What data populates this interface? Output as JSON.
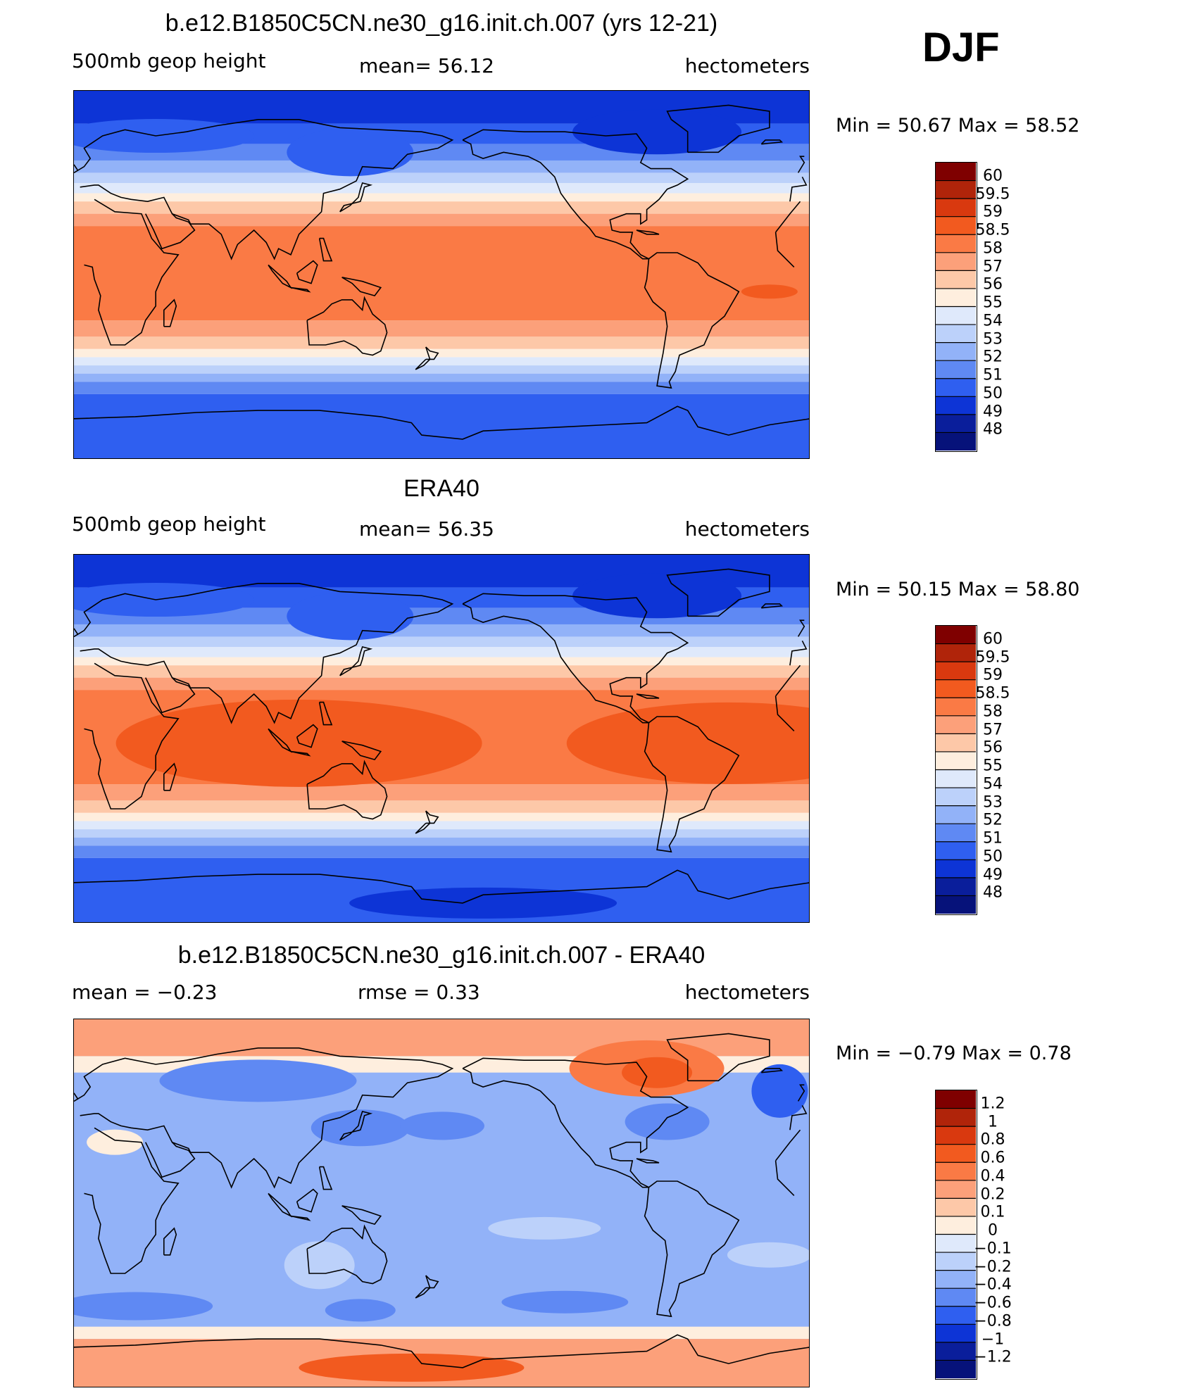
{
  "season": "DJF",
  "panels": [
    {
      "title": "b.e12.B1850C5CN.ne30_g16.init.ch.007 (yrs 12-21)",
      "left": "500mb  geop  height",
      "center": "mean=   56.12",
      "right": "hectometers",
      "minmax": "Min  =    50.67  Max  =    58.52",
      "colorbar_labels": [
        "60",
        "59.5",
        "59",
        "58.5",
        "58",
        "57",
        "56",
        "55",
        "54",
        "53",
        "52",
        "51",
        "50",
        "49",
        "48"
      ],
      "colors": [
        "#7f0000",
        "#b0240a",
        "#d9390f",
        "#f25a1f",
        "#fa7a45",
        "#fca07a",
        "#fdc8a8",
        "#feeede",
        "#dfe9fb",
        "#bcd1fa",
        "#92b2f8",
        "#5f89f3",
        "#2f5ff0",
        "#0d34d6",
        "#0a1e9b",
        "#06127a"
      ],
      "kind": "clim"
    },
    {
      "title": "ERA40",
      "left": "500mb  geop  height",
      "center": "mean=   56.35",
      "right": "hectometers",
      "minmax": "Min  =    50.15  Max  =    58.80",
      "colorbar_labels": [
        "60",
        "59.5",
        "59",
        "58.5",
        "58",
        "57",
        "56",
        "55",
        "54",
        "53",
        "52",
        "51",
        "50",
        "49",
        "48"
      ],
      "colors": [
        "#7f0000",
        "#b0240a",
        "#d9390f",
        "#f25a1f",
        "#fa7a45",
        "#fca07a",
        "#fdc8a8",
        "#feeede",
        "#dfe9fb",
        "#bcd1fa",
        "#92b2f8",
        "#5f89f3",
        "#2f5ff0",
        "#0d34d6",
        "#0a1e9b",
        "#06127a"
      ],
      "kind": "obs"
    },
    {
      "title": "b.e12.B1850C5CN.ne30_g16.init.ch.007 - ERA40",
      "left": "mean  =    −0.23",
      "center": "rmse  =     0.33",
      "right": "hectometers",
      "minmax": "Min  =   −0.79  Max  =     0.78",
      "colorbar_labels": [
        "1.2",
        "1",
        "0.8",
        "0.6",
        "0.4",
        "0.2",
        "0.1",
        "0",
        "−0.1",
        "−0.2",
        "−0.4",
        "−0.6",
        "−0.8",
        "−1",
        "−1.2"
      ],
      "colors": [
        "#7f0000",
        "#b0240a",
        "#d9390f",
        "#f25a1f",
        "#fa7a45",
        "#fca07a",
        "#fdc8a8",
        "#feeede",
        "#dfe9fb",
        "#bcd1fa",
        "#92b2f8",
        "#5f89f3",
        "#2f5ff0",
        "#0d34d6",
        "#0a1e9b",
        "#06127a"
      ],
      "kind": "diff"
    }
  ]
}
